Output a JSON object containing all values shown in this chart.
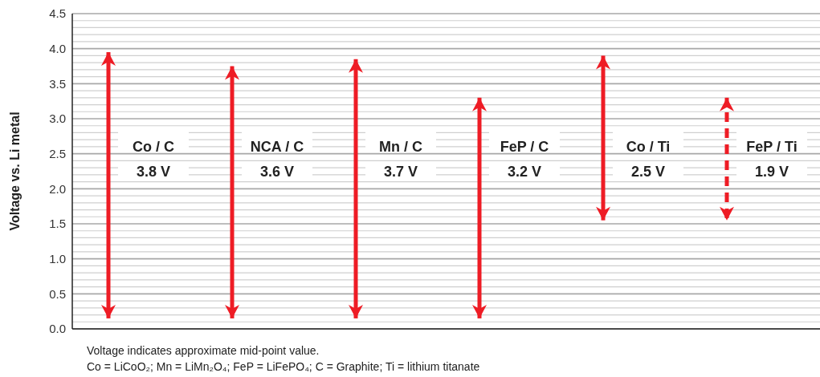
{
  "chart_data": {
    "type": "bar",
    "ylabel": "Voltage vs. Li metal",
    "categories": [
      "Co / C",
      "NCA / C",
      "Mn / C",
      "FeP / C",
      "Co / Ti",
      "FeP / Ti"
    ],
    "series": [
      {
        "color": "#ee1c25",
        "line_style": "solid",
        "base": [
          0.15,
          0.15,
          0.15,
          0.15,
          1.55,
          null
        ],
        "values": [
          3.8,
          3.6,
          3.7,
          3.15,
          2.35,
          null
        ]
      },
      {
        "color": "#ee1c25",
        "line_style": "dashed",
        "base": [
          null,
          null,
          null,
          null,
          null,
          1.55
        ],
        "values": [
          null,
          null,
          null,
          null,
          null,
          1.75
        ]
      }
    ],
    "ylim": [
      0,
      4.5
    ],
    "yticks": [
      {
        "value": 0,
        "label": "0.0"
      },
      {
        "value": 0.1,
        "label": null
      },
      {
        "value": 0.2,
        "label": null
      },
      {
        "value": 0.3,
        "label": null
      },
      {
        "value": 0.4,
        "label": null
      },
      {
        "value": 0.5,
        "label": "0.5"
      },
      {
        "value": 0.6,
        "label": null
      },
      {
        "value": 0.7,
        "label": null
      },
      {
        "value": 0.8,
        "label": null
      },
      {
        "value": 0.9,
        "label": null
      },
      {
        "value": 1,
        "label": "1.0"
      },
      {
        "value": 1.1,
        "label": null
      },
      {
        "value": 1.2,
        "label": null
      },
      {
        "value": 1.3,
        "label": null
      },
      {
        "value": 1.4,
        "label": null
      },
      {
        "value": 1.5,
        "label": "1.5"
      },
      {
        "value": 1.6,
        "label": null
      },
      {
        "value": 1.7,
        "label": null
      },
      {
        "value": 1.8,
        "label": null
      },
      {
        "value": 1.9,
        "label": null
      },
      {
        "value": 2,
        "label": "2.0"
      },
      {
        "value": 2.1,
        "label": null
      },
      {
        "value": 2.2,
        "label": null
      },
      {
        "value": 2.3,
        "label": null
      },
      {
        "value": 2.4,
        "label": null
      },
      {
        "value": 2.5,
        "label": "2.5"
      },
      {
        "value": 2.6,
        "label": null
      },
      {
        "value": 2.7,
        "label": null
      },
      {
        "value": 2.8,
        "label": null
      },
      {
        "value": 2.9,
        "label": null
      },
      {
        "value": 3,
        "label": "3.0"
      },
      {
        "value": 3.1,
        "label": null
      },
      {
        "value": 3.2,
        "label": null
      },
      {
        "value": 3.3,
        "label": null
      },
      {
        "value": 3.4,
        "label": null
      },
      {
        "value": 3.5,
        "label": "3.5"
      },
      {
        "value": 3.6,
        "label": null
      },
      {
        "value": 3.7,
        "label": null
      },
      {
        "value": 3.8,
        "label": null
      },
      {
        "value": 3.9,
        "label": null
      },
      {
        "value": 4,
        "label": "4.0"
      },
      {
        "value": 4.1,
        "label": null
      },
      {
        "value": 4.2,
        "label": null
      },
      {
        "value": 4.3,
        "label": null
      },
      {
        "value": 4.4,
        "label": null
      },
      {
        "value": 4.5,
        "label": "4.5"
      }
    ],
    "grid": "y",
    "annotations": [
      "3.8 V",
      "3.6 V",
      "3.7 V",
      "3.2 V",
      "2.5 V",
      "1.9 V",
      "Voltage indicates approximate mid-point value.",
      "Co = LiCoO₂; Mn = LiMn₂O₄; FeP = LiFePO₄; C = Graphite; Ti = lithium titanate"
    ]
  }
}
